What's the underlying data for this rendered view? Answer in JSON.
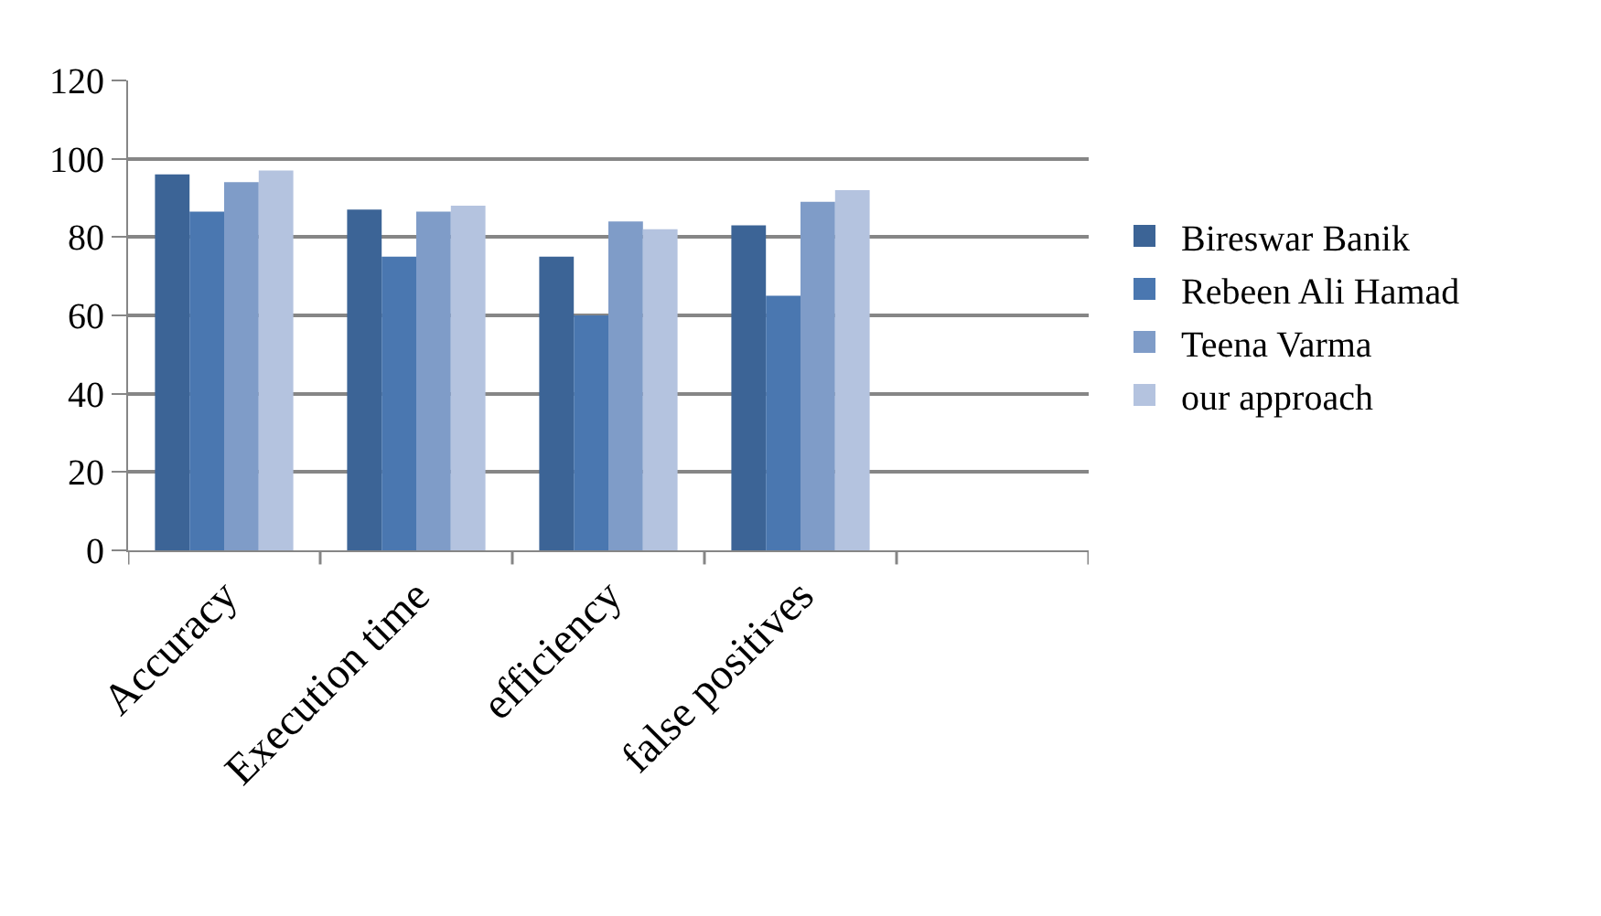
{
  "chart_data": {
    "type": "bar",
    "categories": [
      "Accuracy",
      "Execution time",
      "efficiency",
      "false positives",
      null
    ],
    "series": [
      {
        "name": "Bireswar Banik",
        "color": "#3c6496",
        "values": [
          96,
          87,
          75,
          83,
          null
        ]
      },
      {
        "name": "Rebeen Ali Hamad",
        "color": "#4a77b0",
        "values": [
          86.5,
          75,
          60,
          65,
          null
        ]
      },
      {
        "name": "Teena Varma",
        "color": "#7f9cc8",
        "values": [
          94,
          86.5,
          84,
          89,
          null
        ]
      },
      {
        "name": "our approach",
        "color": "#b4c3df",
        "values": [
          97,
          88,
          82,
          92,
          null
        ]
      }
    ],
    "ylim": [
      0,
      120
    ],
    "yticks": [
      0,
      20,
      40,
      60,
      80,
      100,
      120
    ],
    "grid": "y",
    "legend": "right"
  }
}
